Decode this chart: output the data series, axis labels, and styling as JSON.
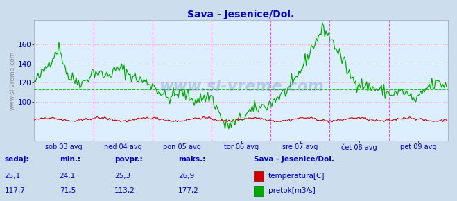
{
  "title": "Sava - Jesenice/Dol.",
  "bg_color": "#ccdded",
  "plot_bg_color": "#ddeeff",
  "title_color": "#0000cc",
  "x_label_color": "#0000cc",
  "y_label_color": "#0000cc",
  "vline_color": "#ff44ff",
  "hgrid_color": "#ffaaaa",
  "avg_line_color": "#00bb00",
  "pretok_color": "#00aa00",
  "temp_color": "#cc0000",
  "watermark": "www.si-vreme.com",
  "sidebar_text": "www.si-vreme.com",
  "xtick_labels": [
    "sob 03 avg",
    "ned 04 avg",
    "pon 05 avg",
    "tor 06 avg",
    "sre 07 avg",
    "čet 08 avg",
    "pet 09 avg"
  ],
  "ytick_vals": [
    100,
    120,
    140,
    160
  ],
  "ylim": [
    60,
    185
  ],
  "xlim": [
    0,
    336
  ],
  "pretok_avg": 113.2,
  "temp_min": 24.1,
  "temp_povpr": 25.3,
  "temp_maks": 26.9,
  "temp_sedaj": 25.1,
  "pretok_sedaj": 117.7,
  "pretok_min": 71.5,
  "pretok_maks": 177.2,
  "pretok_povpr": 113.2,
  "n_points": 336,
  "legend_label_color": "#0000cc",
  "legend_items": [
    {
      "label": "temperatura[C]",
      "color": "#cc0000"
    },
    {
      "label": "pretok[m3/s]",
      "color": "#00aa00"
    }
  ],
  "info_labels": [
    "sedaj:",
    "min.:",
    "povpr.:",
    "maks.:"
  ],
  "temp_values": [
    "25,1",
    "24,1",
    "25,3",
    "26,9"
  ],
  "pretok_values": [
    "117,7",
    "71,5",
    "113,2",
    "177,2"
  ],
  "station_name": "Sava - Jesenice/Dol."
}
